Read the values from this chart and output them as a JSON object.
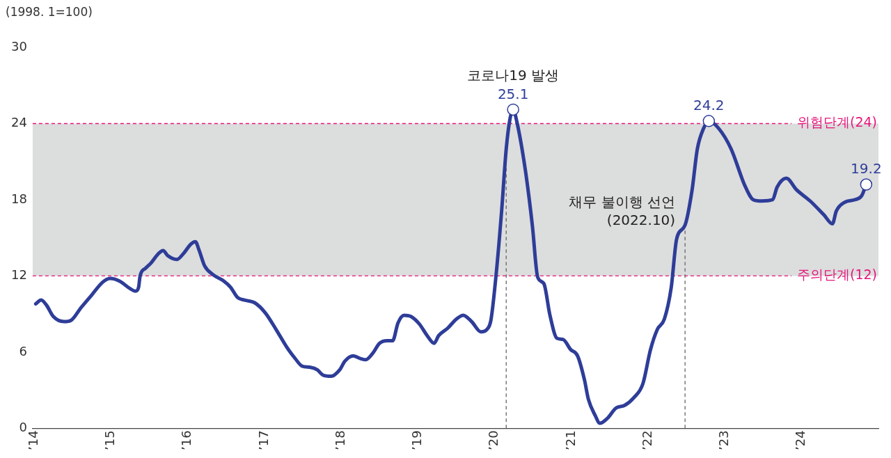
{
  "chart_data": {
    "type": "line",
    "ylabel": "(1998. 1=100)",
    "x": [
      2014.02,
      2014.09,
      2014.16,
      2014.25,
      2014.39,
      2014.48,
      2014.61,
      2014.75,
      2014.89,
      2014.99,
      2015.11,
      2015.25,
      2015.32,
      2015.36,
      2015.38,
      2015.45,
      2015.52,
      2015.61,
      2015.68,
      2015.74,
      2015.86,
      2015.95,
      2016.04,
      2016.1,
      2016.15,
      2016.22,
      2016.33,
      2016.47,
      2016.56,
      2016.65,
      2016.74,
      2016.87,
      2017.01,
      2017.15,
      2017.29,
      2017.4,
      2017.49,
      2017.6,
      2017.69,
      2017.76,
      2017.87,
      2017.98,
      2018.05,
      2018.16,
      2018.25,
      2018.32,
      2018.41,
      2018.5,
      2018.6,
      2018.67,
      2018.74,
      2018.82,
      2018.91,
      2019.02,
      2019.12,
      2019.21,
      2019.27,
      2019.39,
      2019.5,
      2019.59,
      2019.7,
      2019.82,
      2019.9,
      2019.95,
      2020.02,
      2020.09,
      2020.15,
      2020.2,
      2020.24,
      2020.29,
      2020.4,
      2020.49,
      2020.56,
      2020.64,
      2020.72,
      2020.81,
      2020.89,
      2020.99,
      2021.08,
      2021.17,
      2021.22,
      2021.31,
      2021.37,
      2021.47,
      2021.58,
      2021.69,
      2021.81,
      2021.93,
      2022.03,
      2022.12,
      2022.21,
      2022.3,
      2022.37,
      2022.48,
      2022.57,
      2022.64,
      2022.72,
      2022.79,
      2022.92,
      2023.08,
      2023.26,
      2023.37,
      2023.48,
      2023.62,
      2023.68,
      2023.8,
      2023.93,
      2024.11,
      2024.29,
      2024.4,
      2024.45,
      2024.56,
      2024.69,
      2024.78,
      2024.84
    ],
    "values": [
      9.8,
      10.1,
      9.7,
      8.8,
      8.4,
      8.5,
      9.5,
      10.5,
      11.5,
      11.8,
      11.6,
      11.0,
      10.8,
      11.1,
      12.0,
      12.6,
      13.0,
      13.7,
      14.0,
      13.6,
      13.3,
      13.8,
      14.5,
      14.7,
      14.0,
      12.8,
      12.1,
      11.6,
      11.1,
      10.3,
      10.1,
      9.9,
      9.1,
      7.8,
      6.4,
      5.5,
      4.9,
      4.8,
      4.6,
      4.2,
      4.1,
      4.6,
      5.3,
      5.7,
      5.5,
      5.4,
      5.9,
      6.7,
      6.9,
      6.9,
      8.3,
      8.9,
      8.8,
      8.2,
      7.3,
      6.7,
      7.3,
      7.9,
      8.6,
      8.9,
      8.4,
      7.6,
      7.8,
      8.5,
      12.2,
      17.1,
      22.0,
      24.4,
      25.1,
      24.1,
      20.3,
      16.0,
      11.9,
      11.4,
      8.9,
      7.1,
      7.0,
      6.2,
      5.7,
      3.8,
      2.3,
      1.0,
      0.4,
      0.8,
      1.6,
      1.8,
      2.4,
      3.5,
      6.2,
      7.8,
      8.6,
      11.1,
      14.9,
      16.0,
      18.7,
      22.0,
      23.6,
      24.2,
      23.6,
      22.0,
      19.1,
      18.0,
      17.9,
      18.0,
      19.0,
      19.7,
      18.8,
      17.9,
      16.8,
      16.1,
      17.1,
      17.8,
      18.0,
      18.3,
      19.2
    ],
    "value_labels": [
      null,
      null,
      null,
      null,
      null,
      null,
      null,
      null,
      null,
      null,
      null,
      null,
      null,
      null,
      null,
      null,
      null,
      null,
      null,
      null,
      null,
      null,
      null,
      null,
      null,
      null,
      null,
      null,
      null,
      null,
      null,
      null,
      null,
      null,
      null,
      null,
      null,
      null,
      null,
      null,
      null,
      null,
      null,
      null,
      null,
      null,
      null,
      null,
      null,
      null,
      null,
      null,
      null,
      null,
      null,
      null,
      null,
      null,
      null,
      null,
      null,
      null,
      null,
      null,
      null,
      null,
      null,
      null,
      "25.1",
      null,
      null,
      null,
      null,
      null,
      null,
      null,
      null,
      null,
      null,
      null,
      null,
      null,
      null,
      null,
      null,
      null,
      null,
      null,
      null,
      null,
      null,
      null,
      null,
      null,
      null,
      null,
      null,
      "24.2",
      null,
      null,
      null,
      null,
      null,
      null,
      null,
      null,
      null,
      null,
      null,
      null,
      null,
      null,
      null,
      null,
      "19.2"
    ],
    "color": "#2e3d98",
    "xlim": [
      2013.98,
      2025.0
    ],
    "xticks": [
      {
        "value": 2014,
        "label": "’14"
      },
      {
        "value": 2015,
        "label": "’15"
      },
      {
        "value": 2016,
        "label": "’16"
      },
      {
        "value": 2017,
        "label": "’17"
      },
      {
        "value": 2018,
        "label": "’18"
      },
      {
        "value": 2019,
        "label": "’19"
      },
      {
        "value": 2020,
        "label": "’20"
      },
      {
        "value": 2021,
        "label": "’21"
      },
      {
        "value": 2022,
        "label": "’22"
      },
      {
        "value": 2023,
        "label": "’23"
      },
      {
        "value": 2024,
        "label": "’24"
      }
    ],
    "ylim": [
      0,
      30
    ],
    "yticks": [
      0,
      6,
      12,
      18,
      24,
      30
    ],
    "grid": false,
    "legend": false,
    "bands": [
      {
        "axis": "y",
        "from": 12,
        "to": 24,
        "color": "#dcdddd"
      }
    ],
    "ref_lines": [
      {
        "axis": "y",
        "value": 24,
        "label": "위험단계(24)",
        "color": "#e6157a",
        "line_style": "dashed"
      },
      {
        "axis": "y",
        "value": 12,
        "label": "주의단계(12)",
        "color": "#e6157a",
        "line_style": "dashed"
      },
      {
        "axis": "x",
        "value": 2020.15,
        "color": "#666666",
        "line_style": "dashed"
      },
      {
        "axis": "x",
        "value": 2022.48,
        "color": "#666666",
        "line_style": "dashed"
      }
    ],
    "annotations": [
      {
        "text": "코로나19 발생",
        "x": 2020.24,
        "y": 25.1
      },
      {
        "text": "채무 불이행 선언\n(2022.10)",
        "x": 2022.48,
        "y": 16.0
      }
    ]
  }
}
